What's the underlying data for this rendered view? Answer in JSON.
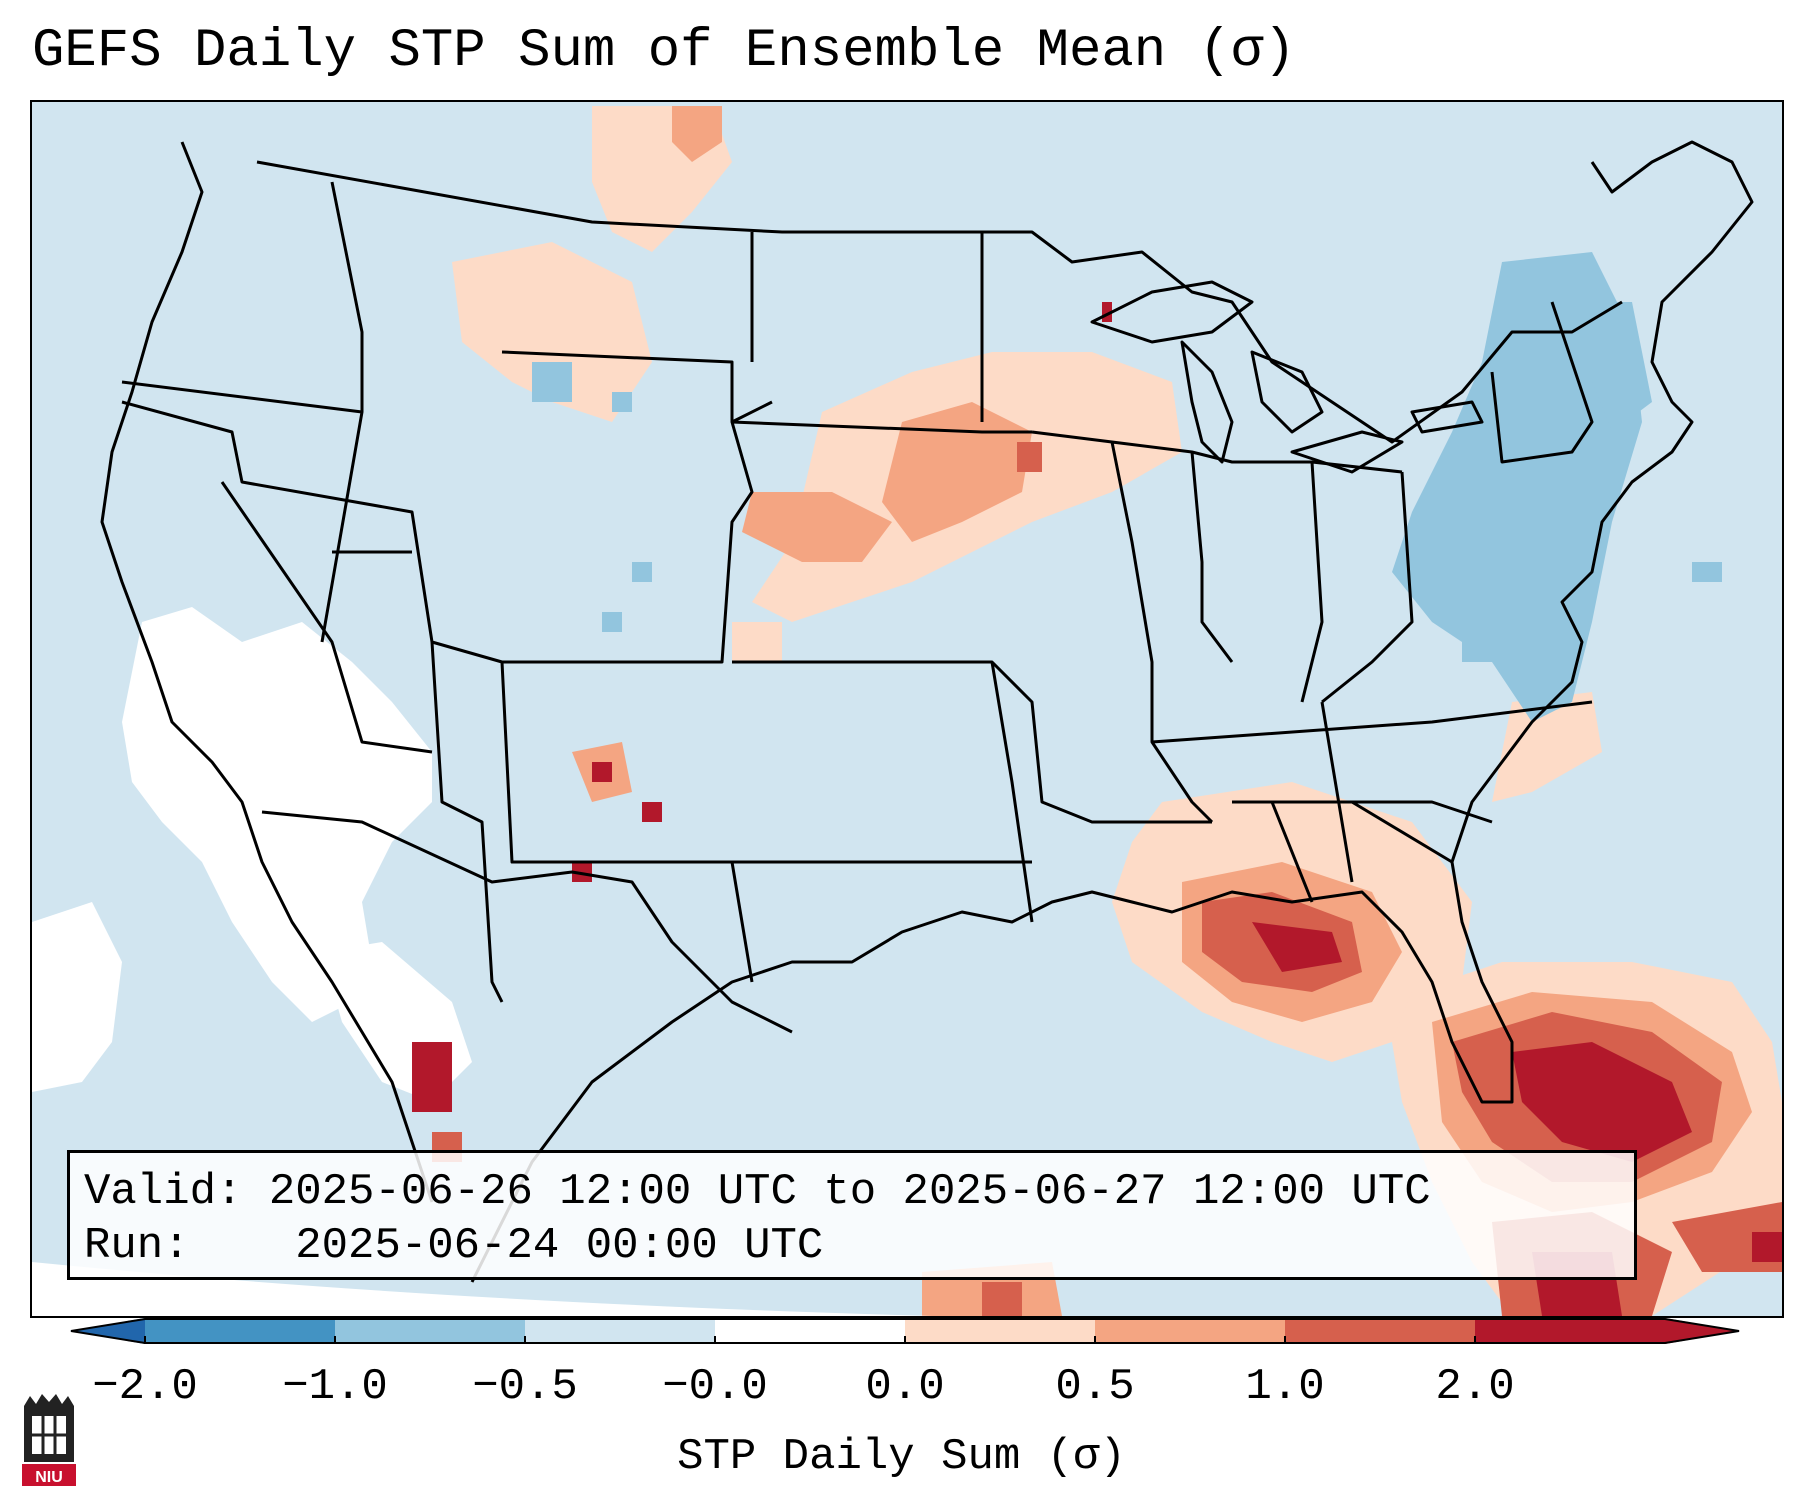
{
  "title": "GEFS Daily STP Sum of Ensemble Mean (σ)",
  "info": {
    "valid_label": "Valid:",
    "valid_value": "2025-06-26 12:00 UTC to 2025-06-27 12:00 UTC",
    "run_label": "Run:",
    "run_value": "2025-06-24 00:00 UTC"
  },
  "colorbar": {
    "label": "STP Daily Sum (σ)",
    "ticks": [
      "−2.0",
      "−1.0",
      "−0.5",
      "−0.0",
      "0.0",
      "0.5",
      "1.0",
      "2.0"
    ],
    "colors": [
      "#4393c3",
      "#92c5de",
      "#d1e5f0",
      "#ffffff",
      "#fddbc7",
      "#f4a582",
      "#d6604d",
      "#b2182b"
    ],
    "extend_low_color": "#2166ac",
    "extend_high_color": "#b2182b"
  },
  "map": {
    "ocean_color": "#d1e5f0",
    "neutral_color": "#ffffff",
    "border_color": "#000000"
  },
  "logo": {
    "text": "NIU"
  }
}
